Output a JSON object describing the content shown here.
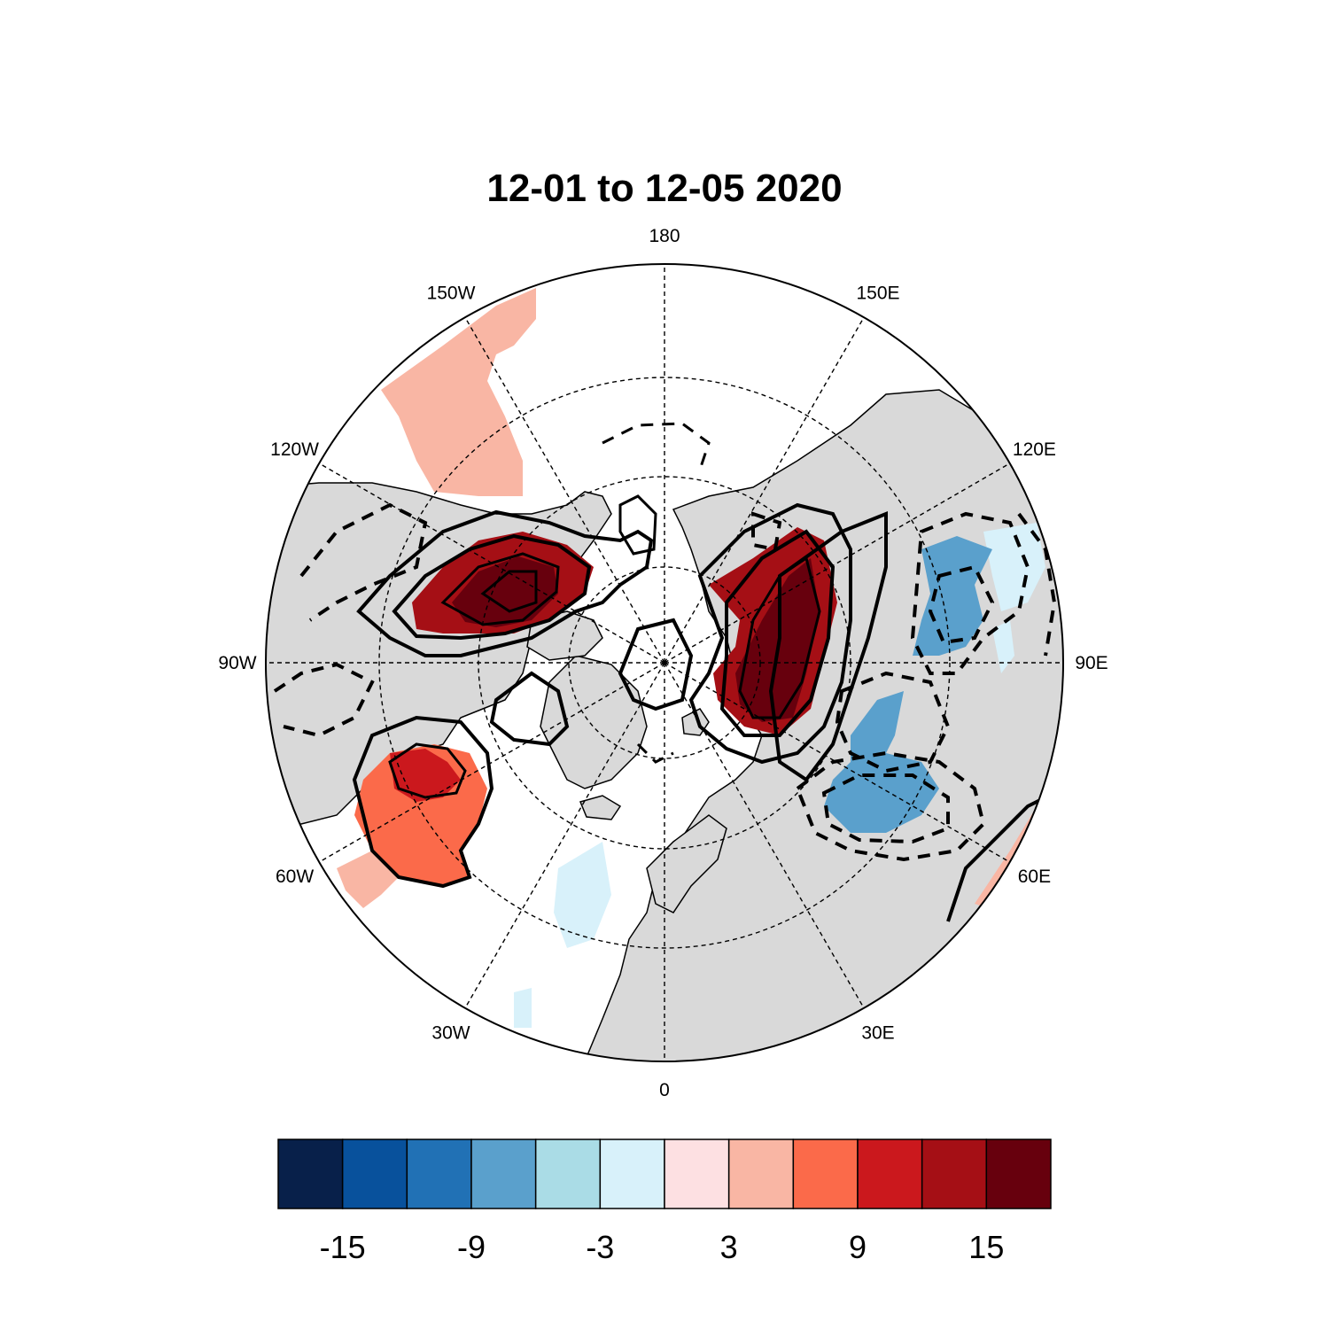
{
  "title": "12-01 to 12-05 2020",
  "map": {
    "projection": "north-polar-stereographic",
    "land_color": "#d9d9d9",
    "ocean_color": "#ffffff",
    "longitude_labels": [
      {
        "lon": 180,
        "label": "180"
      },
      {
        "lon": 150,
        "label": "150E"
      },
      {
        "lon": 120,
        "label": "120E"
      },
      {
        "lon": 90,
        "label": "90E"
      },
      {
        "lon": 60,
        "label": "60E"
      },
      {
        "lon": 30,
        "label": "30E"
      },
      {
        "lon": 0,
        "label": "0"
      },
      {
        "lon": -30,
        "label": "30W"
      },
      {
        "lon": -60,
        "label": "60W"
      },
      {
        "lon": -90,
        "label": "90W"
      },
      {
        "lon": -120,
        "label": "120W"
      },
      {
        "lon": -150,
        "label": "150W"
      }
    ],
    "anomaly_regions": [
      {
        "name": "central-asia-warm-core",
        "level": 15
      },
      {
        "name": "central-asia-warm",
        "level": 12
      },
      {
        "name": "north-america-warm-core",
        "level": 15
      },
      {
        "name": "north-america-warm",
        "level": 12
      },
      {
        "name": "greenland-warm",
        "level": 9
      },
      {
        "name": "atlantic-warm",
        "level": 6
      },
      {
        "name": "pacific-warm",
        "level": 3
      },
      {
        "name": "east-asia-cold-north",
        "level": -9
      },
      {
        "name": "east-asia-cold-south",
        "level": -9
      },
      {
        "name": "east-asia-cool",
        "level": -3
      },
      {
        "name": "atlantic-cool",
        "level": -1
      }
    ]
  },
  "colorbar": {
    "colors": [
      "#08204a",
      "#08519c",
      "#2171b5",
      "#5aa0cc",
      "#aadce6",
      "#d8f1fa",
      "#fde0e2",
      "#f9b6a4",
      "#fb6a4a",
      "#cb181d",
      "#a50f15",
      "#67000d"
    ],
    "tick_labels": [
      {
        "boundary": 1,
        "label": "-15"
      },
      {
        "boundary": 3,
        "label": "-9"
      },
      {
        "boundary": 5,
        "label": "-3"
      },
      {
        "boundary": 7,
        "label": "3"
      },
      {
        "boundary": 9,
        "label": "9"
      },
      {
        "boundary": 11,
        "label": "15"
      }
    ]
  }
}
